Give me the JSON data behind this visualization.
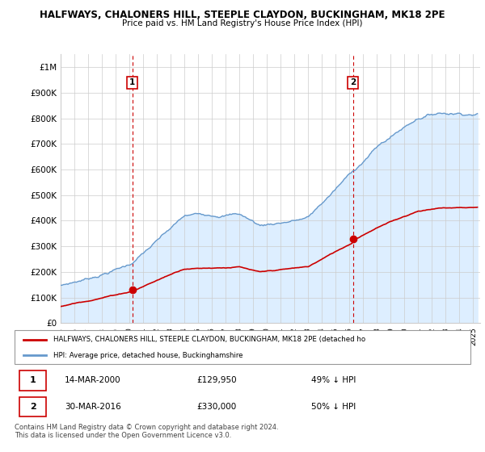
{
  "title_line1": "HALFWAYS, CHALONERS HILL, STEEPLE CLAYDON, BUCKINGHAM, MK18 2PE",
  "title_line2": "Price paid vs. HM Land Registry's House Price Index (HPI)",
  "ylim": [
    0,
    1050000
  ],
  "yticks": [
    0,
    100000,
    200000,
    300000,
    400000,
    500000,
    600000,
    700000,
    800000,
    900000,
    1000000
  ],
  "ytick_labels": [
    "£0",
    "£100K",
    "£200K",
    "£300K",
    "£400K",
    "£500K",
    "£600K",
    "£700K",
    "£800K",
    "£900K",
    "£1M"
  ],
  "xlim_start": 1995.0,
  "xlim_end": 2025.5,
  "hpi_color": "#6699cc",
  "hpi_fill_color": "#ddeeff",
  "price_color": "#cc0000",
  "sale1_year": 2000.21,
  "sale1_price": 129950,
  "sale2_year": 2016.25,
  "sale2_price": 330000,
  "legend_line1": "HALFWAYS, CHALONERS HILL, STEEPLE CLAYDON, BUCKINGHAM, MK18 2PE (detached ho",
  "legend_line2": "HPI: Average price, detached house, Buckinghamshire",
  "footnote1": "Contains HM Land Registry data © Crown copyright and database right 2024.",
  "footnote2": "This data is licensed under the Open Government Licence v3.0.",
  "table_row1": [
    "1",
    "14-MAR-2000",
    "£129,950",
    "49% ↓ HPI"
  ],
  "table_row2": [
    "2",
    "30-MAR-2016",
    "£330,000",
    "50% ↓ HPI"
  ]
}
